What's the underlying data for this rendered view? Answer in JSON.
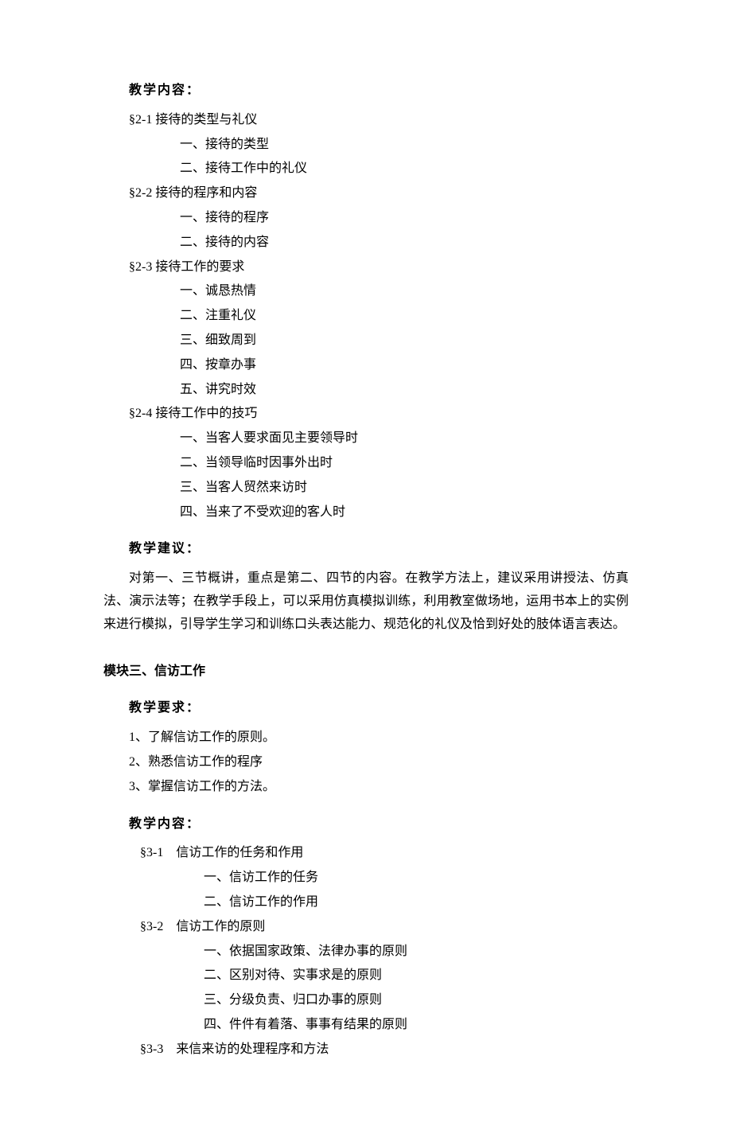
{
  "section1": {
    "contentHeading": "教学内容：",
    "g1": {
      "title": "§2-1 接待的类型与礼仪",
      "items": [
        "一、接待的类型",
        "二、接待工作中的礼仪"
      ]
    },
    "g2": {
      "title": "§2-2 接待的程序和内容",
      "items": [
        "一、接待的程序",
        "二、接待的内容"
      ]
    },
    "g3": {
      "title": "§2-3 接待工作的要求",
      "items": [
        "一、诚恳热情",
        "二、注重礼仪",
        "三、细致周到",
        "四、按章办事",
        "五、讲究时效"
      ]
    },
    "g4": {
      "title": "§2-4 接待工作中的技巧",
      "items": [
        "一、当客人要求面见主要领导时",
        "二、当领导临时因事外出时",
        "三、当客人贸然来访时",
        "四、当来了不受欢迎的客人时"
      ]
    },
    "suggestionHeading": "教学建议：",
    "suggestionText": "对第一、三节概讲，重点是第二、四节的内容。在教学方法上，建议采用讲授法、仿真法、演示法等；在教学手段上，可以采用仿真模拟训练，利用教室做场地，运用书本上的实例来进行模拟，引导学生学习和训练口头表达能力、规范化的礼仪及恰到好处的肢体语言表达。"
  },
  "section2": {
    "moduleHeading": "模块三、信访工作",
    "reqHeading": "教学要求：",
    "reqItems": [
      "1、了解信访工作的原则。",
      "2、熟悉信访工作的程序",
      "3、掌握信访工作的方法。"
    ],
    "contentHeading": "教学内容：",
    "g1": {
      "title": "§3-1　信访工作的任务和作用",
      "items": [
        "一、信访工作的任务",
        "二、信访工作的作用"
      ]
    },
    "g2": {
      "title": "§3-2　信访工作的原则",
      "items": [
        "一、依据国家政策、法律办事的原则",
        "二、区别对待、实事求是的原则",
        "三、分级负责、归口办事的原则",
        "四、件件有着落、事事有结果的原则"
      ]
    },
    "g3": {
      "title": "§3-3　来信来访的处理程序和方法"
    }
  }
}
